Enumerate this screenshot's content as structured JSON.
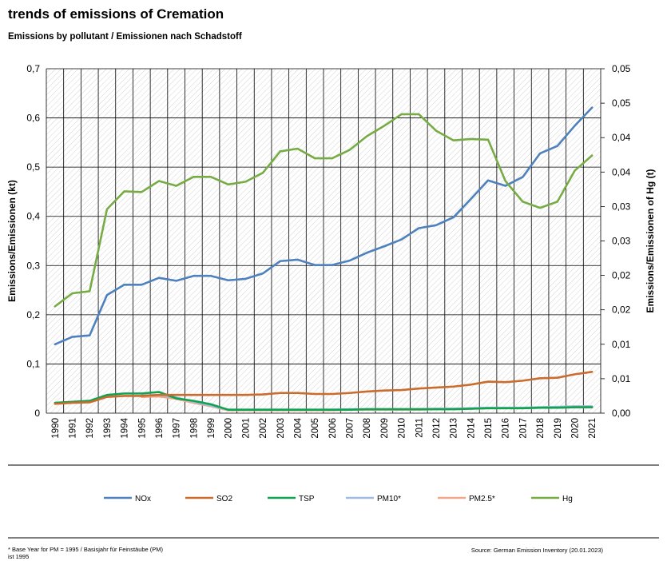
{
  "title": "trends of emissions of Cremation",
  "subtitle": "Emissions by pollutant / Emissionen nach Schadstoff",
  "footnote": "* Base Year for PM = 1995 / Basisjahr für Feinstäube (PM) ist 1995",
  "source": "Source: German Emission Inventory (20.01.2023)",
  "chart_data": {
    "type": "line",
    "ylabel": "Emissions/Emissionen (kt)",
    "y2label": "Emissions/Emissionen of Hg (t)",
    "ylim": [
      0,
      0.7
    ],
    "y2lim": [
      0,
      0.05
    ],
    "yticks": [
      "0",
      "0,1",
      "0,2",
      "0,3",
      "0,4",
      "0,5",
      "0,6",
      "0,7"
    ],
    "y2ticks": [
      "0,00",
      "0,01",
      "0,01",
      "0,02",
      "0,02",
      "0,03",
      "0,03",
      "0,04",
      "0,04",
      "0,05",
      "0,05"
    ],
    "grid": true,
    "legend_position": "bottom",
    "x": [
      "1990",
      "1991",
      "1992",
      "1993",
      "1994",
      "1995",
      "1996",
      "1997",
      "1998",
      "1999",
      "2000",
      "2001",
      "2002",
      "2003",
      "2004",
      "2005",
      "2006",
      "2007",
      "2008",
      "2009",
      "2010",
      "2011",
      "2012",
      "2013",
      "2014",
      "2015",
      "2016",
      "2017",
      "2018",
      "2019",
      "2020",
      "2021"
    ],
    "series": [
      {
        "name": "NOx",
        "axis": "left",
        "color": "#4e81bd",
        "values": [
          0.14,
          0.155,
          0.158,
          0.24,
          0.261,
          0.261,
          0.275,
          0.269,
          0.279,
          0.279,
          0.27,
          0.273,
          0.284,
          0.309,
          0.312,
          0.301,
          0.301,
          0.31,
          0.326,
          0.339,
          0.353,
          0.376,
          0.382,
          0.398,
          0.435,
          0.473,
          0.462,
          0.48,
          0.528,
          0.543,
          0.584,
          0.621
        ]
      },
      {
        "name": "SO2",
        "axis": "left",
        "color": "#c96c2d",
        "values": [
          0.019,
          0.021,
          0.022,
          0.033,
          0.035,
          0.035,
          0.037,
          0.037,
          0.037,
          0.037,
          0.037,
          0.037,
          0.038,
          0.041,
          0.041,
          0.039,
          0.039,
          0.041,
          0.044,
          0.046,
          0.047,
          0.05,
          0.052,
          0.054,
          0.058,
          0.064,
          0.063,
          0.066,
          0.071,
          0.072,
          0.079,
          0.084
        ]
      },
      {
        "name": "TSP",
        "axis": "left",
        "color": "#10a34f",
        "values": [
          0.021,
          0.023,
          0.025,
          0.037,
          0.04,
          0.04,
          0.043,
          0.03,
          0.025,
          0.018,
          0.007,
          0.007,
          0.007,
          0.007,
          0.007,
          0.007,
          0.007,
          0.007,
          0.008,
          0.008,
          0.008,
          0.008,
          0.008,
          0.008,
          0.009,
          0.01,
          0.01,
          0.01,
          0.011,
          0.011,
          0.012,
          0.012
        ]
      },
      {
        "name": "PM10*",
        "axis": "left",
        "color": "#9fbbdf",
        "values": [
          null,
          null,
          null,
          null,
          null,
          0.036,
          0.037,
          0.032,
          0.023,
          0.015,
          0.007,
          0.007,
          0.007,
          0.007,
          0.007,
          0.007,
          0.007,
          0.008,
          0.008,
          0.008,
          0.008,
          0.008,
          0.009,
          0.009,
          0.01,
          0.011,
          0.011,
          0.011,
          0.012,
          0.013,
          0.014,
          0.014
        ]
      },
      {
        "name": "PM2.5*",
        "axis": "left",
        "color": "#f2a78a",
        "values": [
          null,
          null,
          null,
          null,
          null,
          0.033,
          0.034,
          0.029,
          0.021,
          0.014,
          0.006,
          0.006,
          0.006,
          0.006,
          0.006,
          0.006,
          0.006,
          0.007,
          0.007,
          0.007,
          0.007,
          0.007,
          0.008,
          0.008,
          0.009,
          0.01,
          0.01,
          0.01,
          0.011,
          0.011,
          0.012,
          0.012
        ]
      },
      {
        "name": "Hg",
        "axis": "right",
        "color": "#77ac45",
        "values": [
          0.0155,
          0.0174,
          0.0177,
          0.0296,
          0.0322,
          0.0321,
          0.0337,
          0.033,
          0.0343,
          0.0343,
          0.0332,
          0.0336,
          0.0349,
          0.038,
          0.0384,
          0.037,
          0.037,
          0.0382,
          0.0402,
          0.0417,
          0.0434,
          0.0434,
          0.041,
          0.0396,
          0.0398,
          0.0397,
          0.0337,
          0.0307,
          0.0298,
          0.0307,
          0.0352,
          0.0374
        ]
      }
    ]
  }
}
